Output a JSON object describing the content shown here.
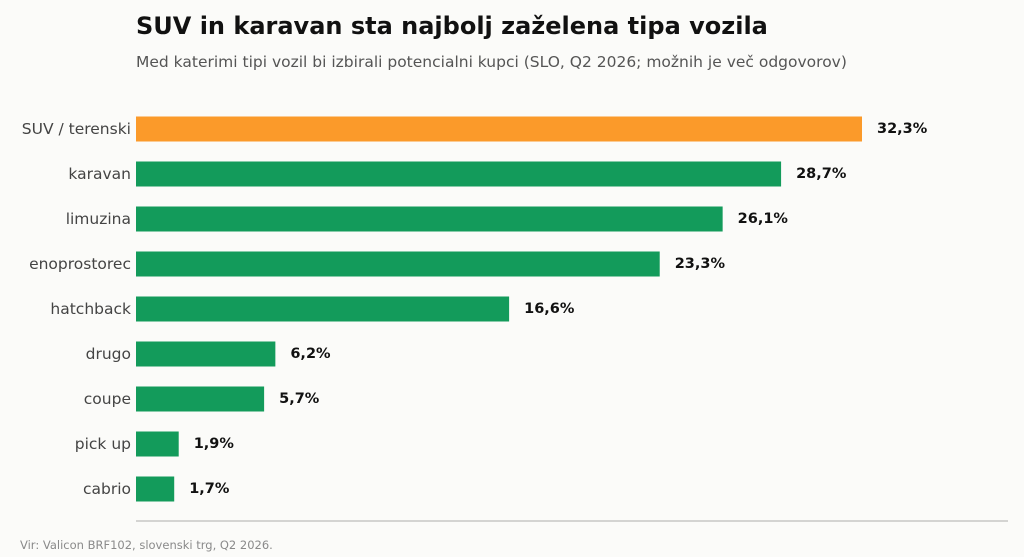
{
  "chart_data": {
    "type": "bar",
    "orientation": "horizontal",
    "title": "SUV in karavan sta najbolj zaželena tipa vozila",
    "subtitle": "Med katerimi tipi vozil bi izbirali potencialni kupci (SLO, Q2 2026; možnih je več odgovorov)",
    "source": "Vir: Valicon BRF102, slovenski trg, Q2 2026.",
    "categories": [
      "SUV / terenski",
      "karavan",
      "limuzina",
      "enoprostorec",
      "hatchback",
      "drugo",
      "coupe",
      "pick up",
      "cabrio"
    ],
    "values": [
      32.3,
      28.7,
      26.1,
      23.3,
      16.6,
      6.2,
      5.7,
      1.9,
      1.7
    ],
    "value_labels": [
      "32,3%",
      "28,7%",
      "26,1%",
      "23,3%",
      "16,6%",
      "6,2%",
      "5,7%",
      "1,9%",
      "1,7%"
    ],
    "highlight_index": 0,
    "colors": {
      "highlight": "#fb9a2a",
      "default": "#139b5b",
      "axis": "#bcbcbc"
    },
    "xlim": [
      0,
      32.3
    ],
    "grid": false,
    "legend": "none"
  }
}
